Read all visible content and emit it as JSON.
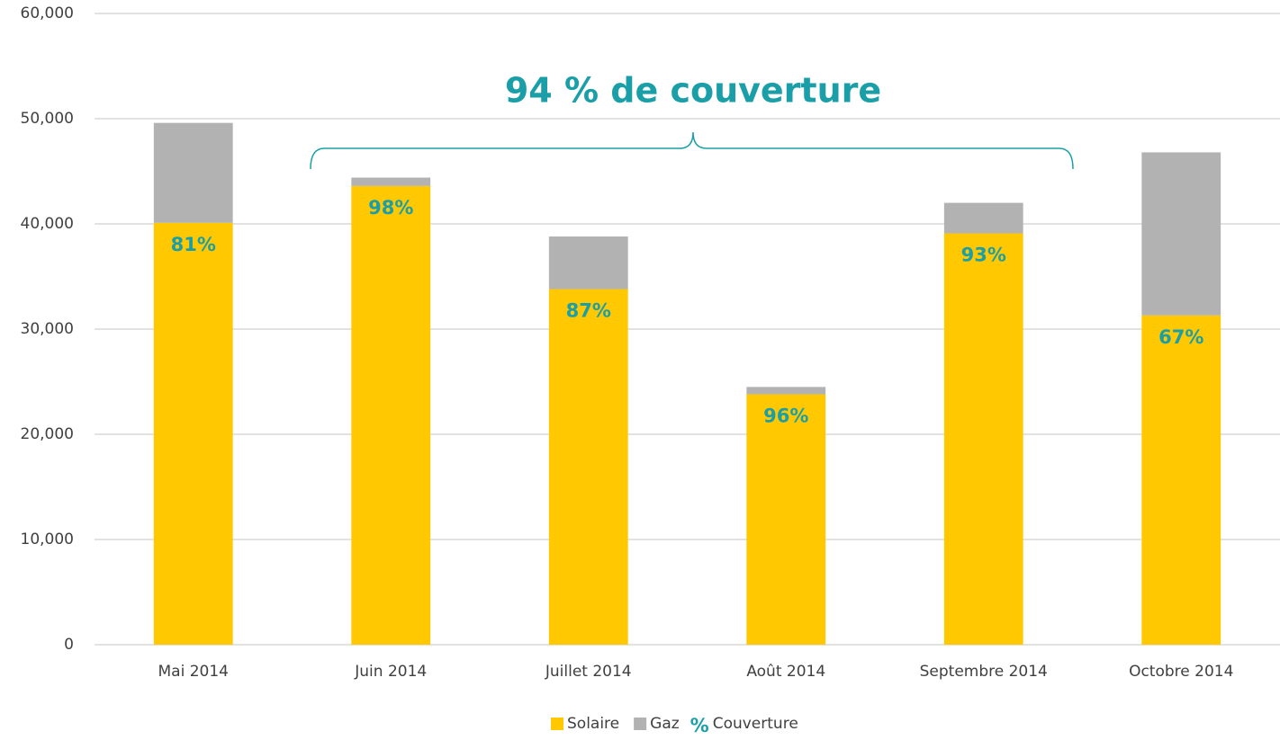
{
  "chart_data": {
    "type": "bar",
    "stacked": true,
    "annotation": "94 % de couverture",
    "categories": [
      "Mai 2014",
      "Juin 2014",
      "Juillet 2014",
      "Août 2014",
      "Septembre 2014",
      "Octobre 2014"
    ],
    "series": [
      {
        "name": "Solaire",
        "color": "#ffc800",
        "values": [
          40100,
          43600,
          33800,
          23800,
          39100,
          31300
        ]
      },
      {
        "name": "Gaz",
        "color": "#b2b2b2",
        "values": [
          9500,
          800,
          5000,
          700,
          2900,
          15500
        ]
      }
    ],
    "coverage": {
      "name": "Couverture",
      "marker": "%",
      "color": "#1a9fa8",
      "values": [
        81,
        98,
        87,
        96,
        93,
        67
      ],
      "value_labels": [
        "81%",
        "98%",
        "87%",
        "96%",
        "93%",
        "67%"
      ]
    },
    "ylim": [
      0,
      60000
    ],
    "yticks": [
      0,
      {
        "value": 10000,
        "label": "10,000"
      },
      {
        "value": 20000,
        "label": "20,000"
      },
      {
        "value": 30000,
        "label": "30,000"
      },
      {
        "value": 40000,
        "label": "40,000"
      },
      {
        "value": 50000,
        "label": "50,000"
      },
      {
        "value": 60000,
        "label": "60,000"
      }
    ],
    "grid": true,
    "legend": "bottom"
  }
}
